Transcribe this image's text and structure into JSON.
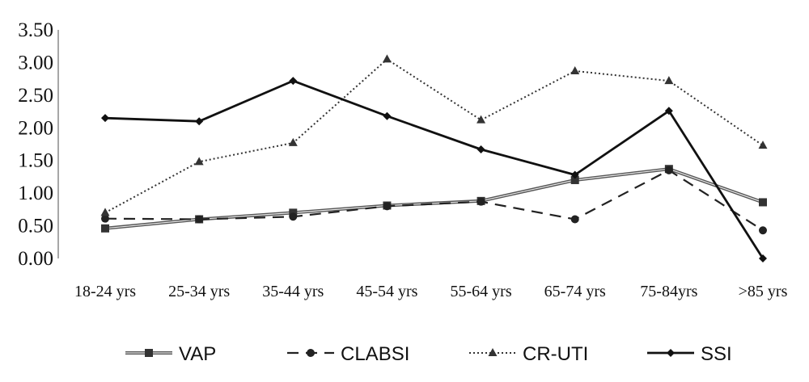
{
  "chart_data": {
    "type": "line",
    "title": "",
    "xlabel": "",
    "ylabel": "",
    "categories": [
      "18-24 yrs",
      "25-34 yrs",
      "35-44 yrs",
      "45-54 yrs",
      "55-64 yrs",
      "65-74 yrs",
      "75-84yrs",
      ">85 yrs"
    ],
    "ylim": [
      0,
      3.5
    ],
    "yticks": [
      "0.00",
      "0.50",
      "1.00",
      "1.50",
      "2.00",
      "2.50",
      "3.00",
      "3.50"
    ],
    "grid": false,
    "legend_position": "bottom",
    "series": [
      {
        "name": "VAP",
        "style": "double",
        "marker": "square",
        "color": "#333333",
        "values": [
          0.46,
          0.6,
          0.7,
          0.81,
          0.88,
          1.2,
          1.37,
          0.86
        ]
      },
      {
        "name": "CLABSI",
        "style": "dashed",
        "marker": "circle",
        "color": "#222222",
        "values": [
          0.61,
          0.6,
          0.64,
          0.8,
          0.87,
          0.6,
          1.35,
          0.43
        ]
      },
      {
        "name": "CR-UTI",
        "style": "dotted",
        "marker": "triangle",
        "color": "#333333",
        "values": [
          0.7,
          1.48,
          1.77,
          3.05,
          2.12,
          2.87,
          2.72,
          1.73
        ]
      },
      {
        "name": "SSI",
        "style": "solid",
        "marker": "diamond",
        "color": "#111111",
        "values": [
          2.15,
          2.1,
          2.72,
          2.18,
          1.67,
          1.28,
          2.26,
          0.0
        ]
      }
    ]
  }
}
